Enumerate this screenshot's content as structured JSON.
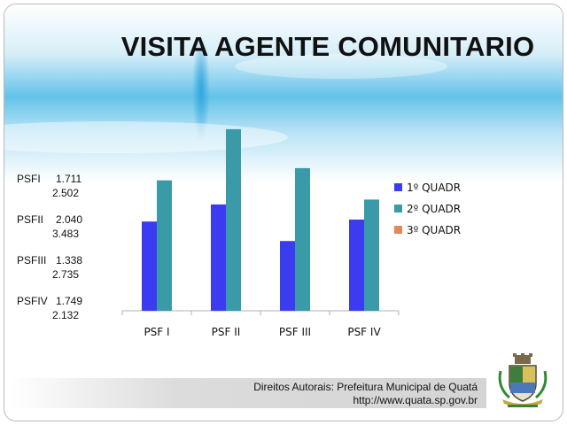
{
  "slide": {
    "title": "VISITA AGENTE COMUNITARIO",
    "side_values": [
      {
        "name": "PSFI",
        "v1": "1.711",
        "v2": "2.502"
      },
      {
        "name": "PSFII",
        "v1": "2.040",
        "v2": "3.483"
      },
      {
        "name": "PSFIII",
        "v1": "1.338",
        "v2": "2.735"
      },
      {
        "name": "PSFIV",
        "v1": "1.749",
        "v2": "2.132"
      }
    ],
    "footer": {
      "line1": "Direitos Autorais: Prefeitura Municipal de Quatá",
      "line2": "http://www.quata.sp.gov.br"
    },
    "colors": {
      "series1": "#3b3bf0",
      "series2": "#3a9aa8",
      "series3": "#e08a5a"
    }
  },
  "chart_data": {
    "type": "bar",
    "title": "",
    "xlabel": "",
    "ylabel": "",
    "categories": [
      "PSF I",
      "PSF II",
      "PSF III",
      "PSF IV"
    ],
    "series": [
      {
        "name": "1º QUADR",
        "values": [
          1711,
          2040,
          1338,
          1749
        ]
      },
      {
        "name": "2º QUADR",
        "values": [
          2502,
          3483,
          2735,
          2132
        ]
      },
      {
        "name": "3º QUADR",
        "values": [
          0,
          0,
          0,
          0
        ]
      }
    ],
    "ylim": [
      0,
      3600
    ],
    "grid": false,
    "legend": "right"
  }
}
